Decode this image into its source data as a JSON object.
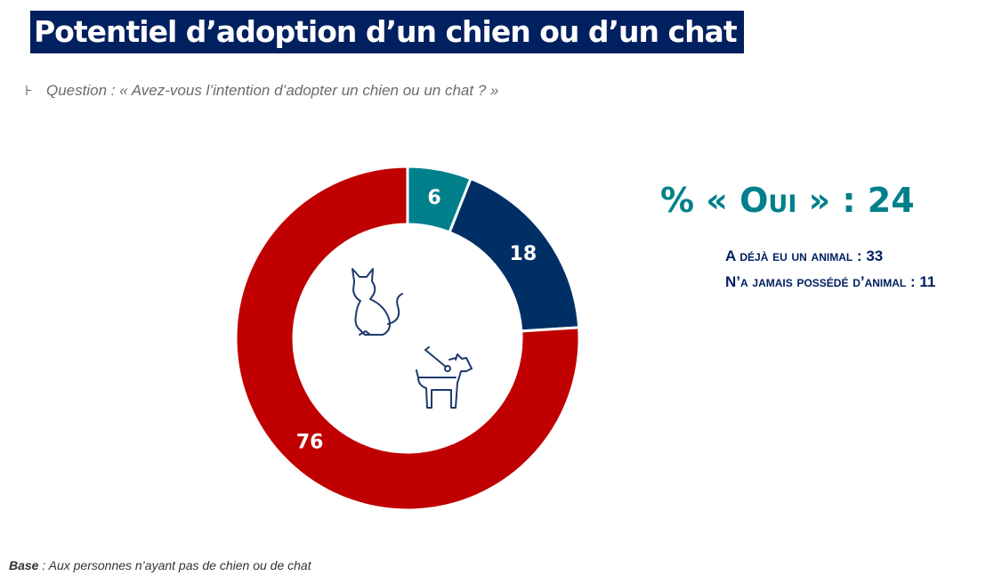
{
  "title": "Potentiel d’adoption d’un chien ou d’un chat",
  "question": {
    "bullet": "⊦",
    "text": "Question : « Avez-vous l’intention d’adopter un chien ou un chat ? »"
  },
  "summary": {
    "headline_prefix": "% « ",
    "headline_word": "Oui",
    "headline_suffix": " » : 24",
    "line1": "A déjà eu un animal : 33",
    "line2": "N’a jamais possédé d’animal : 11"
  },
  "base": {
    "label": "Base",
    "text": " : Aux personnes n’ayant pas de chien ou de chat"
  },
  "icons": [
    "cat-icon",
    "dog-on-leash-icon"
  ],
  "colors": {
    "title_bg": "#002060",
    "teal": "#00808a",
    "navy": "#002f66",
    "red": "#c00000"
  },
  "chart_data": {
    "type": "pie",
    "style": "donut",
    "values": [
      6,
      18,
      76
    ],
    "labels": [
      "6",
      "18",
      "76"
    ],
    "colors": [
      "#00808a",
      "#002f66",
      "#c00000"
    ],
    "start": "top",
    "direction": "clockwise"
  }
}
